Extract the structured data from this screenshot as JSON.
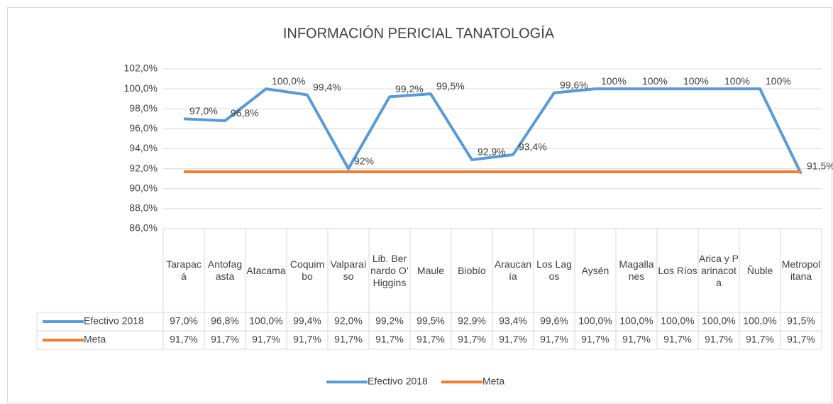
{
  "chart_data": {
    "type": "line",
    "title": "INFORMACIÓN PERICIAL TANATOLOGÍA",
    "categories": [
      "Tarapacá",
      "Antofagasta",
      "Atacama",
      "Coquimbo",
      "Valparaíso",
      "Lib. Bernardo O’ Higgins",
      "Maule",
      "Biobío",
      "Araucanía",
      "Los Lagos",
      "Aysén",
      "Magallanes",
      "Los Ríos",
      "Arica y Parinacota",
      "Ñuble",
      "Metropolitana"
    ],
    "series": [
      {
        "name": "Efectivo 2018",
        "color": "#5b9bd5",
        "values": [
          97.0,
          96.8,
          100.0,
          99.4,
          92.0,
          99.2,
          99.5,
          92.9,
          93.4,
          99.6,
          100.0,
          100.0,
          100.0,
          100.0,
          100.0,
          91.5
        ],
        "value_labels": [
          "97,0%",
          "96,8%",
          "100,0%",
          "99,4%",
          "92%",
          "99,2%",
          "99,5%",
          "92,9%",
          "93,4%",
          "99,6%",
          "100%",
          "100%",
          "100%",
          "100%",
          "100%",
          "91,5%"
        ],
        "table_labels": [
          "97,0%",
          "96,8%",
          "100,0%",
          "99,4%",
          "92,0%",
          "99,2%",
          "99,5%",
          "92,9%",
          "93,4%",
          "99,6%",
          "100,0%",
          "100,0%",
          "100,0%",
          "100,0%",
          "100,0%",
          "91,5%"
        ]
      },
      {
        "name": "Meta",
        "color": "#ed7d31",
        "values": [
          91.7,
          91.7,
          91.7,
          91.7,
          91.7,
          91.7,
          91.7,
          91.7,
          91.7,
          91.7,
          91.7,
          91.7,
          91.7,
          91.7,
          91.7,
          91.7
        ],
        "table_labels": [
          "91,7%",
          "91,7%",
          "91,7%",
          "91,7%",
          "91,7%",
          "91,7%",
          "91,7%",
          "91,7%",
          "91,7%",
          "91,7%",
          "91,7%",
          "91,7%",
          "91,7%",
          "91,7%",
          "91,7%",
          "91,7%"
        ]
      }
    ],
    "ylim": [
      86,
      102
    ],
    "yticks": [
      {
        "value": 86,
        "label": "86,0%"
      },
      {
        "value": 88,
        "label": "88,0%"
      },
      {
        "value": 90,
        "label": "90,0%"
      },
      {
        "value": 92,
        "label": "92,0%"
      },
      {
        "value": 94,
        "label": "94,0%"
      },
      {
        "value": 96,
        "label": "96,0%"
      },
      {
        "value": 98,
        "label": "98,0%"
      },
      {
        "value": 100,
        "label": "100,0%"
      },
      {
        "value": 102,
        "label": "102,0%"
      }
    ],
    "grid": true,
    "legend": "bottom"
  }
}
